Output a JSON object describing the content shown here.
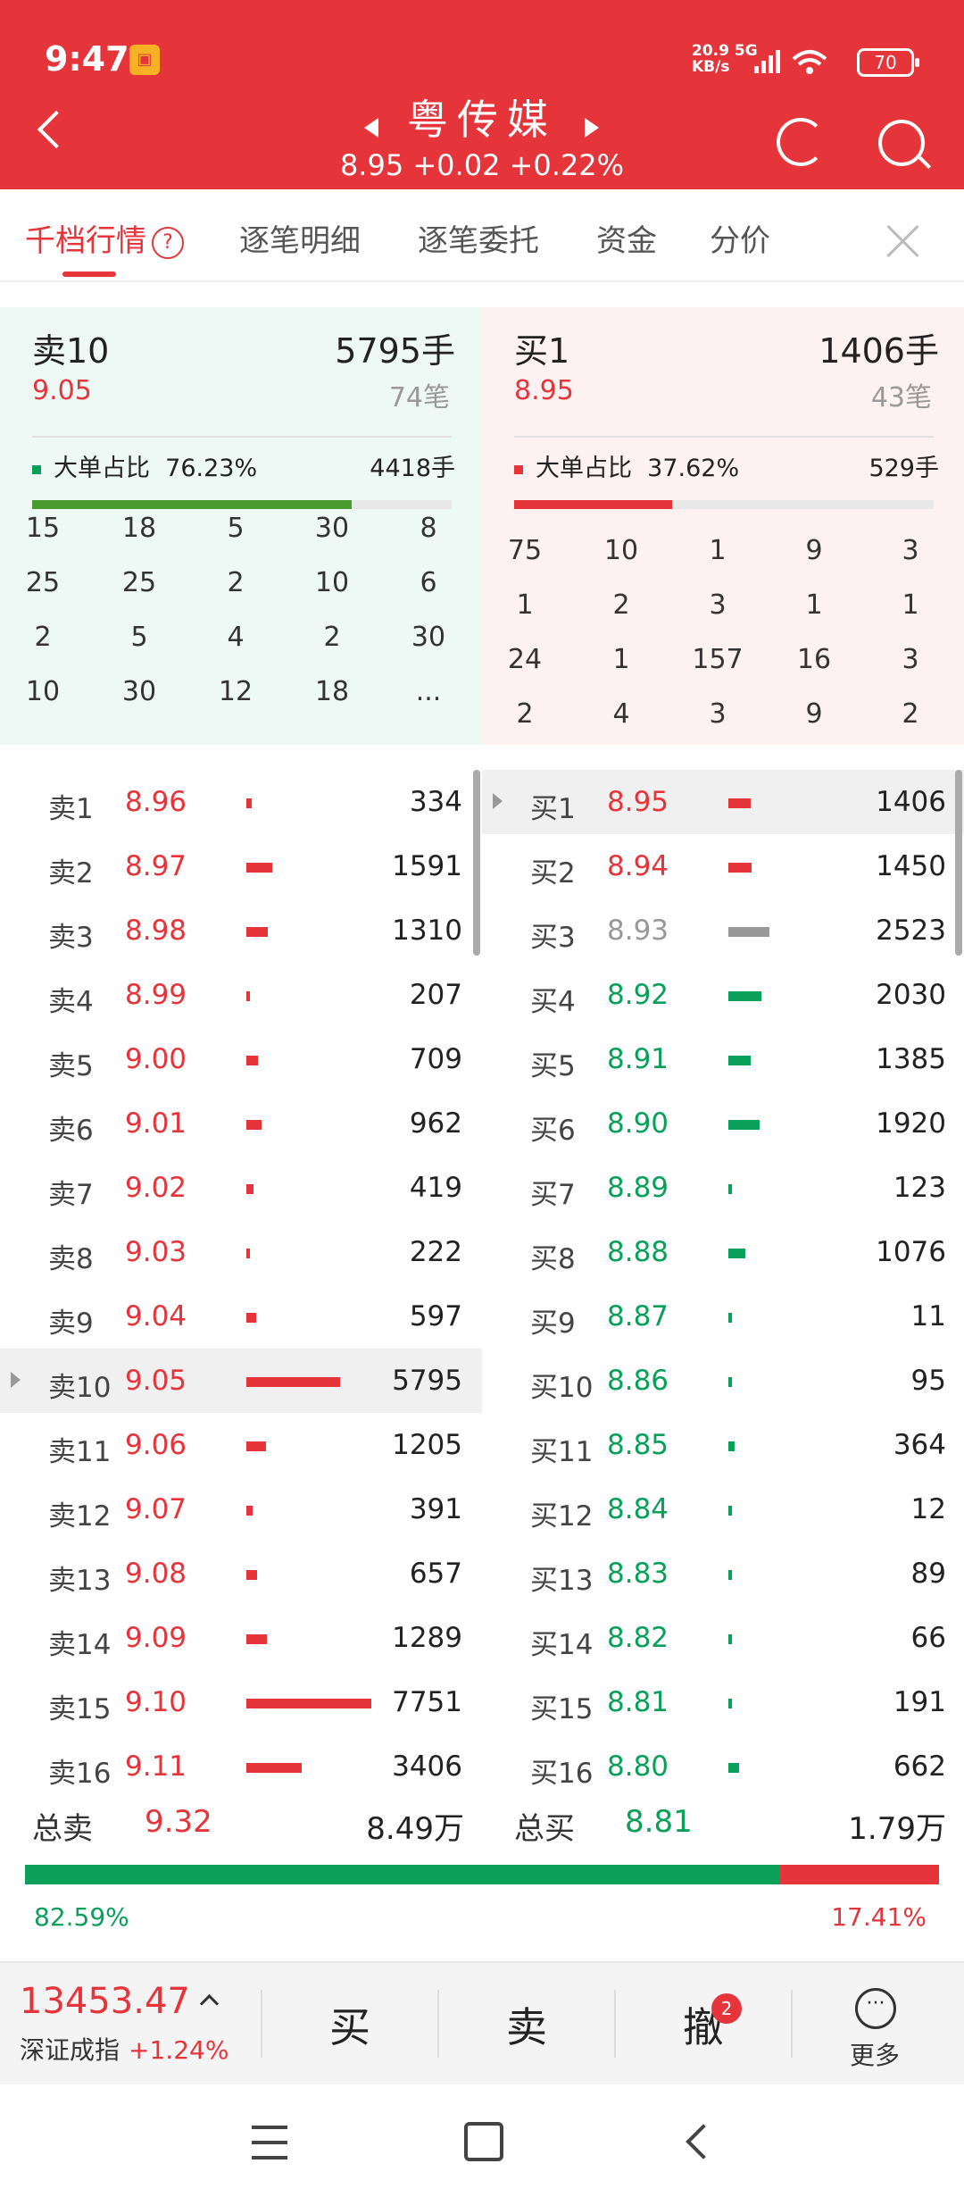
{
  "status_bar": {
    "time": "9:47",
    "network_speed": "20.9",
    "network_unit": "KB/s",
    "network_type": "5G",
    "battery": "70"
  },
  "header": {
    "title": "粤传媒",
    "quote": "8.95  +0.02  +0.22%"
  },
  "tabs": [
    {
      "label": "千档行情",
      "active": true
    },
    {
      "label": "逐笔明细"
    },
    {
      "label": "逐笔委托"
    },
    {
      "label": "资金"
    },
    {
      "label": "分价"
    }
  ],
  "sell_panel": {
    "level": "卖10",
    "volume": "5795手",
    "price": "9.05",
    "count": "74笔",
    "big_label": "大单占比",
    "big_ratio": "76.23%",
    "big_volume": "4418手",
    "big_fill": 0.7623,
    "grid": [
      [
        "15",
        "18",
        "5",
        "30",
        "8"
      ],
      [
        "25",
        "25",
        "2",
        "10",
        "6"
      ],
      [
        "2",
        "5",
        "4",
        "2",
        "30"
      ],
      [
        "10",
        "30",
        "12",
        "18",
        "..."
      ]
    ]
  },
  "buy_panel": {
    "level": "买1",
    "volume": "1406手",
    "price": "8.95",
    "count": "43笔",
    "big_label": "大单占比",
    "big_ratio": "37.62%",
    "big_volume": "529手",
    "big_fill": 0.3762,
    "grid": [
      [
        "75",
        "10",
        "1",
        "9",
        "3"
      ],
      [
        "1",
        "2",
        "3",
        "1",
        "1"
      ],
      [
        "24",
        "1",
        "157",
        "16",
        "3"
      ],
      [
        "2",
        "4",
        "3",
        "9",
        "2"
      ]
    ]
  },
  "sell_orders": [
    {
      "label": "卖1",
      "price": "8.96",
      "volume": "334"
    },
    {
      "label": "卖2",
      "price": "8.97",
      "volume": "1591"
    },
    {
      "label": "卖3",
      "price": "8.98",
      "volume": "1310"
    },
    {
      "label": "卖4",
      "price": "8.99",
      "volume": "207"
    },
    {
      "label": "卖5",
      "price": "9.00",
      "volume": "709"
    },
    {
      "label": "卖6",
      "price": "9.01",
      "volume": "962"
    },
    {
      "label": "卖7",
      "price": "9.02",
      "volume": "419"
    },
    {
      "label": "卖8",
      "price": "9.03",
      "volume": "222"
    },
    {
      "label": "卖9",
      "price": "9.04",
      "volume": "597"
    },
    {
      "label": "卖10",
      "price": "9.05",
      "volume": "5795"
    },
    {
      "label": "卖11",
      "price": "9.06",
      "volume": "1205"
    },
    {
      "label": "卖12",
      "price": "9.07",
      "volume": "391"
    },
    {
      "label": "卖13",
      "price": "9.08",
      "volume": "657"
    },
    {
      "label": "卖14",
      "price": "9.09",
      "volume": "1289"
    },
    {
      "label": "卖15",
      "price": "9.10",
      "volume": "7751"
    },
    {
      "label": "卖16",
      "price": "9.11",
      "volume": "3406"
    }
  ],
  "buy_orders": [
    {
      "label": "买1",
      "price": "8.95",
      "volume": "1406"
    },
    {
      "label": "买2",
      "price": "8.94",
      "volume": "1450"
    },
    {
      "label": "买3",
      "price": "8.93",
      "volume": "2523"
    },
    {
      "label": "买4",
      "price": "8.92",
      "volume": "2030"
    },
    {
      "label": "买5",
      "price": "8.91",
      "volume": "1385"
    },
    {
      "label": "买6",
      "price": "8.90",
      "volume": "1920"
    },
    {
      "label": "买7",
      "price": "8.89",
      "volume": "123"
    },
    {
      "label": "买8",
      "price": "8.88",
      "volume": "1076"
    },
    {
      "label": "买9",
      "price": "8.87",
      "volume": "11"
    },
    {
      "label": "买10",
      "price": "8.86",
      "volume": "95"
    },
    {
      "label": "买11",
      "price": "8.85",
      "volume": "364"
    },
    {
      "label": "买12",
      "price": "8.84",
      "volume": "12"
    },
    {
      "label": "买13",
      "price": "8.83",
      "volume": "89"
    },
    {
      "label": "买14",
      "price": "8.82",
      "volume": "66"
    },
    {
      "label": "买15",
      "price": "8.81",
      "volume": "191"
    },
    {
      "label": "买16",
      "price": "8.80",
      "volume": "662"
    }
  ],
  "totals": {
    "sell_label": "总卖",
    "sell_price": "9.32",
    "sell_volume": "8.49万",
    "buy_label": "总买",
    "buy_price": "8.81",
    "buy_volume": "1.79万",
    "left_pct": "82.59%",
    "right_pct": "17.41%",
    "left_fill": 0.8259
  },
  "bottom_bar": {
    "index_value": "13453.47",
    "index_name": "深证成指",
    "index_change": "+1.24%",
    "buy": "买",
    "sell": "卖",
    "cancel": "撤",
    "cancel_badge": "2",
    "more": "更多"
  },
  "colors": {
    "red": "#e5353b",
    "green": "#0aa05a",
    "gray": "#999999",
    "header_bg": "#e5353b"
  }
}
